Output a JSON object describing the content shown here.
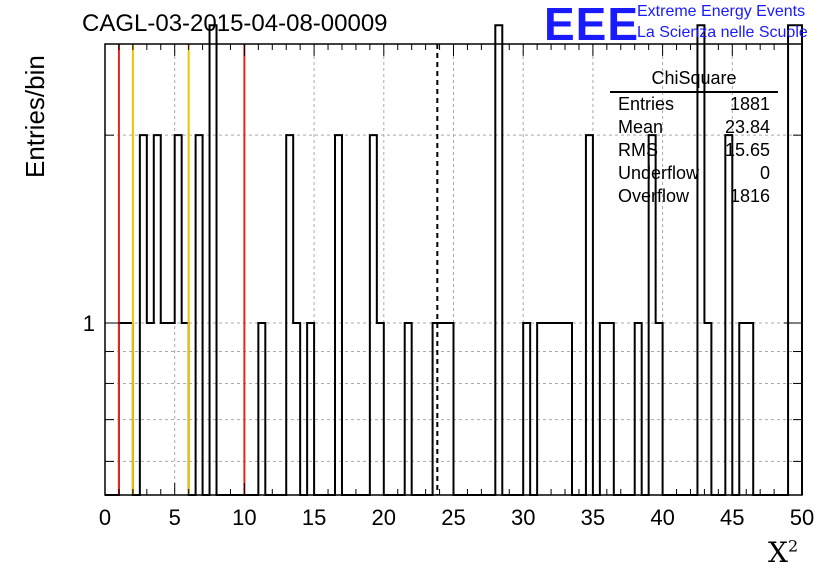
{
  "title": "CAGL-03-2015-04-08-00009",
  "logo": {
    "mark": "EEE",
    "line1": "Extreme Energy Events",
    "line2": "La Scienza nelle Scuole",
    "color": "#1a1aff"
  },
  "stats_box": {
    "title": "ChiSquare",
    "rows": [
      {
        "label": "Entries",
        "value": "1881"
      },
      {
        "label": "Mean",
        "value": "23.84"
      },
      {
        "label": "RMS",
        "value": "15.65"
      },
      {
        "label": "Underflow",
        "value": "0"
      },
      {
        "label": "Overflow",
        "value": "1816"
      }
    ]
  },
  "chart_data": {
    "type": "bar",
    "histogram": true,
    "xlabel": "X",
    "xlabel_superscript": "2",
    "ylabel": "Entries/bin",
    "xlim": [
      0,
      50
    ],
    "y_log": true,
    "ylim": [
      0.53,
      2.8
    ],
    "y_tick_labels": [
      {
        "value": 1,
        "label": "1"
      }
    ],
    "x_tick_labels": [
      "0",
      "5",
      "10",
      "15",
      "20",
      "25",
      "30",
      "35",
      "40",
      "45",
      "50"
    ],
    "grid": true,
    "bin_width": 0.5,
    "bins": [
      {
        "x": 0.5,
        "count": 0
      },
      {
        "x": 1.0,
        "count": 1
      },
      {
        "x": 1.5,
        "count": 1
      },
      {
        "x": 2.0,
        "count": 0
      },
      {
        "x": 2.5,
        "count": 2
      },
      {
        "x": 3.0,
        "count": 1
      },
      {
        "x": 3.5,
        "count": 2
      },
      {
        "x": 4.0,
        "count": 1
      },
      {
        "x": 4.5,
        "count": 1
      },
      {
        "x": 5.0,
        "count": 2
      },
      {
        "x": 5.5,
        "count": 1
      },
      {
        "x": 6.0,
        "count": 0
      },
      {
        "x": 6.5,
        "count": 2
      },
      {
        "x": 7.0,
        "count": 0
      },
      {
        "x": 7.5,
        "count": 3
      },
      {
        "x": 8.0,
        "count": 0
      },
      {
        "x": 10.5,
        "count": 0
      },
      {
        "x": 11.0,
        "count": 1
      },
      {
        "x": 11.5,
        "count": 0
      },
      {
        "x": 13.0,
        "count": 2
      },
      {
        "x": 13.5,
        "count": 1
      },
      {
        "x": 14.0,
        "count": 0
      },
      {
        "x": 14.5,
        "count": 1
      },
      {
        "x": 15.0,
        "count": 0
      },
      {
        "x": 16.5,
        "count": 2
      },
      {
        "x": 17.0,
        "count": 0
      },
      {
        "x": 19.0,
        "count": 2
      },
      {
        "x": 19.5,
        "count": 1
      },
      {
        "x": 20.0,
        "count": 0
      },
      {
        "x": 21.5,
        "count": 1
      },
      {
        "x": 22.0,
        "count": 0
      },
      {
        "x": 23.5,
        "count": 1
      },
      {
        "x": 25.0,
        "count": 0
      },
      {
        "x": 28.0,
        "count": 3
      },
      {
        "x": 28.5,
        "count": 0
      },
      {
        "x": 30.0,
        "count": 1
      },
      {
        "x": 30.5,
        "count": 0
      },
      {
        "x": 31.0,
        "count": 1
      },
      {
        "x": 33.5,
        "count": 0
      },
      {
        "x": 34.5,
        "count": 2
      },
      {
        "x": 35.0,
        "count": 0
      },
      {
        "x": 35.5,
        "count": 1
      },
      {
        "x": 36.5,
        "count": 0
      },
      {
        "x": 38.0,
        "count": 1
      },
      {
        "x": 38.5,
        "count": 0
      },
      {
        "x": 39.0,
        "count": 2
      },
      {
        "x": 39.5,
        "count": 1
      },
      {
        "x": 40.0,
        "count": 0
      },
      {
        "x": 42.5,
        "count": 3
      },
      {
        "x": 43.0,
        "count": 1
      },
      {
        "x": 43.5,
        "count": 0
      },
      {
        "x": 44.5,
        "count": 2
      },
      {
        "x": 45.0,
        "count": 0
      },
      {
        "x": 45.5,
        "count": 1
      },
      {
        "x": 46.5,
        "count": 0
      },
      {
        "x": 49.0,
        "count": 3
      },
      {
        "x": 49.5,
        "count": 3
      },
      {
        "x": 50.0,
        "count": 0
      }
    ],
    "markers": [
      {
        "x": 1,
        "color": "#e8251f",
        "style": "solid"
      },
      {
        "x": 2,
        "color": "#f5c000",
        "style": "solid"
      },
      {
        "x": 6,
        "color": "#f5c000",
        "style": "solid"
      },
      {
        "x": 10,
        "color": "#e8251f",
        "style": "solid"
      },
      {
        "x": 23.84,
        "color": "#000000",
        "style": "dashed"
      }
    ]
  }
}
